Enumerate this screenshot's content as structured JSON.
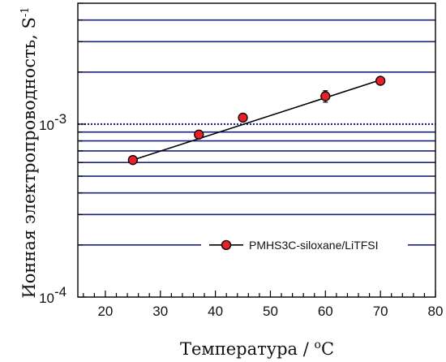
{
  "chart_data": {
    "type": "scatter",
    "title": "",
    "xlabel": "Температура / ",
    "xlabel_unit_sup": "o",
    "xlabel_unit": "C",
    "ylabel": "Ионная электропроводность, S",
    "ylabel_sup": "-1",
    "xlim": [
      15,
      80
    ],
    "ylim": [
      0.0001,
      0.005
    ],
    "yscale": "log",
    "x_ticks": [
      20,
      30,
      40,
      50,
      60,
      70,
      80
    ],
    "x_tick_labels": [
      "20",
      "30",
      "40",
      "50",
      "60",
      "70",
      "80"
    ],
    "y_major_ticks": [
      {
        "value": 0.0001,
        "base": "10",
        "exp": "-4"
      },
      {
        "value": 0.001,
        "base": "10",
        "exp": "-3"
      }
    ],
    "gridlines_y": [
      0.0002,
      0.0003,
      0.0004,
      0.0005,
      0.0006,
      0.0007,
      0.0008,
      0.0009,
      0.002,
      0.003,
      0.004
    ],
    "reference_line_y": 0.001,
    "grid": true,
    "legend_position": "lower-right",
    "colors": {
      "grid": "#1a237e",
      "reference": "#1a237e",
      "marker_fill": "#e8202a",
      "marker_stroke": "#000000",
      "fit_line": "#000000",
      "axis": "#000000"
    },
    "series": [
      {
        "name": "PMHS3C-siloxane/LiTFSI",
        "marker": "circle",
        "x": [
          25,
          37,
          45,
          60,
          70
        ],
        "y": [
          0.00062,
          0.00087,
          0.00109,
          0.00145,
          0.00178
        ],
        "yerr": [
          2e-05,
          4e-05,
          5e-05,
          0.00011,
          8e-05
        ]
      }
    ],
    "fit_line": {
      "x": [
        25,
        70
      ],
      "y": [
        0.00062,
        0.0018
      ]
    }
  }
}
